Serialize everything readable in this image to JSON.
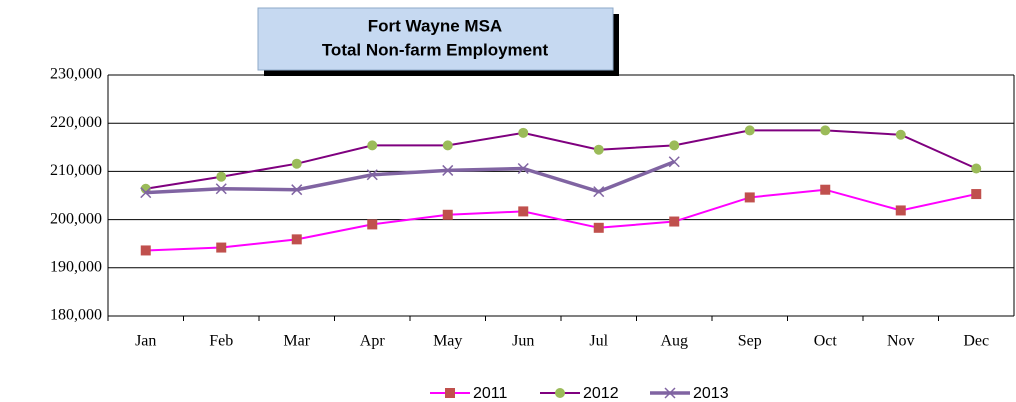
{
  "chart_data": {
    "type": "line",
    "title": [
      "Fort Wayne MSA",
      "Total Non-farm Employment"
    ],
    "categories": [
      "Jan",
      "Feb",
      "Mar",
      "Apr",
      "May",
      "Jun",
      "Jul",
      "Aug",
      "Sep",
      "Oct",
      "Nov",
      "Dec"
    ],
    "series": [
      {
        "name": "2011",
        "color": "#ff00ff",
        "marker": "square",
        "marker_color": "#c0504d",
        "values": [
          193600,
          194200,
          195900,
          199000,
          201000,
          201700,
          198300,
          199600,
          204600,
          206200,
          201900,
          205300
        ]
      },
      {
        "name": "2012",
        "color": "#7f007f",
        "marker": "circle",
        "marker_color": "#9bbb59",
        "values": [
          206400,
          208900,
          211600,
          215400,
          215400,
          218000,
          214500,
          215400,
          218500,
          218500,
          217600,
          210600
        ]
      },
      {
        "name": "2013",
        "color": "#8064a2",
        "marker": "x",
        "marker_color": "#8064a2",
        "values": [
          205600,
          206400,
          206200,
          209300,
          210200,
          210600,
          205800,
          212000,
          null,
          null,
          null,
          null
        ]
      }
    ],
    "ylim": [
      180000,
      230000
    ],
    "yticks": [
      {
        "value": 180000,
        "label": "180,000"
      },
      {
        "value": 190000,
        "label": "190,000"
      },
      {
        "value": 200000,
        "label": "200,000"
      },
      {
        "value": 210000,
        "label": "210,000"
      },
      {
        "value": 220000,
        "label": "220,000"
      },
      {
        "value": 230000,
        "label": "230,000"
      }
    ],
    "grid": true,
    "legend": "bottom"
  }
}
